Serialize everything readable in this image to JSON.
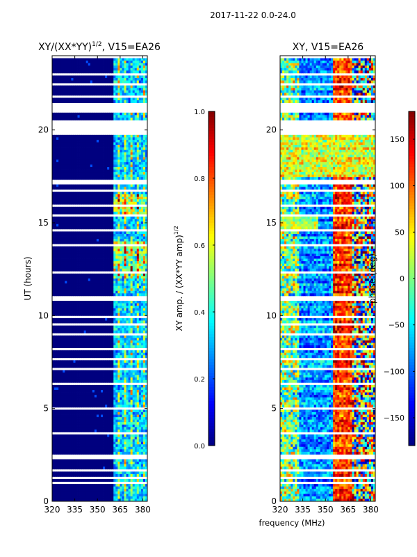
{
  "figure": {
    "suptitle": "2017-11-22 0.0-24.0",
    "shared_xlabel": "frequency (MHz)"
  },
  "colors": {
    "jet": [
      "#00007f",
      "#0000ff",
      "#007fff",
      "#00ffff",
      "#7fff7f",
      "#ffff00",
      "#ff7f00",
      "#ff0000",
      "#7f0000"
    ],
    "gap": "#ffffff"
  },
  "chart_data": [
    {
      "type": "heatmap",
      "title_main": "XY/(XX*YY)",
      "title_sup": "1/2",
      "title_rest": ", V15=EA26",
      "xlabel": "",
      "ylabel": "UT (hours)",
      "xlim": [
        320,
        383
      ],
      "ylim": [
        0,
        24
      ],
      "xticks": [
        320,
        335,
        350,
        365,
        380
      ],
      "yticks": [
        0,
        5,
        10,
        15,
        20
      ],
      "mode": "amplitude",
      "rfi_free_band_mhz": [
        360,
        383
      ],
      "colorbar": {
        "label_main": "XY amp. / (XX*YY amp)",
        "label_sup": "1/2",
        "range": [
          0.0,
          1.0
        ],
        "ticks": [
          "0.0",
          "0.2",
          "0.4",
          "0.6",
          "0.8",
          "1.0"
        ]
      }
    },
    {
      "type": "heatmap",
      "title_main": "XY, V15=EA26",
      "title_sup": "",
      "title_rest": "",
      "xlabel": "frequency (MHz)",
      "ylabel": "",
      "xlim": [
        320,
        383
      ],
      "ylim": [
        0,
        24
      ],
      "xticks": [
        320,
        335,
        350,
        365,
        380
      ],
      "yticks": [
        0,
        5,
        10,
        15,
        20
      ],
      "mode": "phase",
      "colorbar": {
        "label_main": "phase (deg)",
        "label_sup": "",
        "range": [
          -180,
          180
        ],
        "ticks": [
          "150",
          "100",
          "50",
          "0",
          "−50",
          "−100",
          "−150"
        ],
        "tick_values": [
          150,
          100,
          50,
          0,
          -50,
          -100,
          -150
        ]
      }
    }
  ],
  "flagged_hours": [
    [
      0.25,
      0.32
    ],
    [
      0.9,
      1.0
    ],
    [
      1.2,
      1.32
    ],
    [
      1.65,
      1.72
    ],
    [
      2.3,
      2.5
    ],
    [
      3.15,
      3.25
    ],
    [
      3.6,
      3.75
    ],
    [
      4.1,
      4.18
    ],
    [
      4.9,
      5.0
    ],
    [
      5.55,
      5.62
    ],
    [
      6.3,
      6.45
    ],
    [
      7.1,
      7.2
    ],
    [
      7.6,
      7.7
    ],
    [
      8.15,
      8.25
    ],
    [
      8.9,
      9.0
    ],
    [
      9.5,
      9.6
    ],
    [
      9.9,
      10.05
    ],
    [
      10.85,
      11.0
    ],
    [
      12.25,
      12.35
    ],
    [
      13.7,
      13.8
    ],
    [
      14.6,
      14.7
    ],
    [
      15.35,
      15.45
    ],
    [
      15.9,
      16.0
    ],
    [
      16.7,
      16.8
    ],
    [
      17.1,
      17.35
    ],
    [
      17.8,
      17.9
    ],
    [
      18.35,
      18.45
    ],
    [
      19.8,
      20.5
    ],
    [
      20.9,
      21.4
    ],
    [
      21.8,
      21.9
    ],
    [
      22.45,
      22.55
    ],
    [
      23.0,
      23.1
    ],
    [
      23.55,
      23.65
    ],
    [
      23.9,
      24.0
    ]
  ]
}
